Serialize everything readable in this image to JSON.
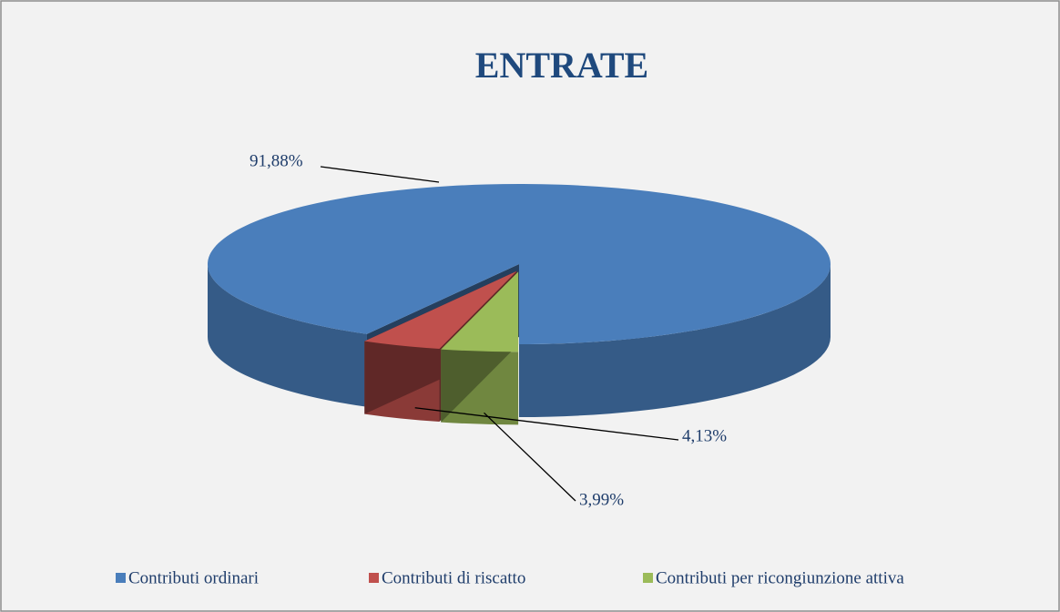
{
  "chart_data": {
    "type": "pie",
    "title": "ENTRATE",
    "categories": [
      "Contributi ordinari",
      "Contributi di riscatto",
      "Contributi per ricongiunzione attiva"
    ],
    "values": [
      91.88,
      4.13,
      3.99
    ],
    "value_labels": [
      "91,88%",
      "4,13%",
      "3,99%"
    ],
    "colors": [
      "#4a7ebb",
      "#c0504d",
      "#9bbb59"
    ],
    "legend": "bottom"
  }
}
